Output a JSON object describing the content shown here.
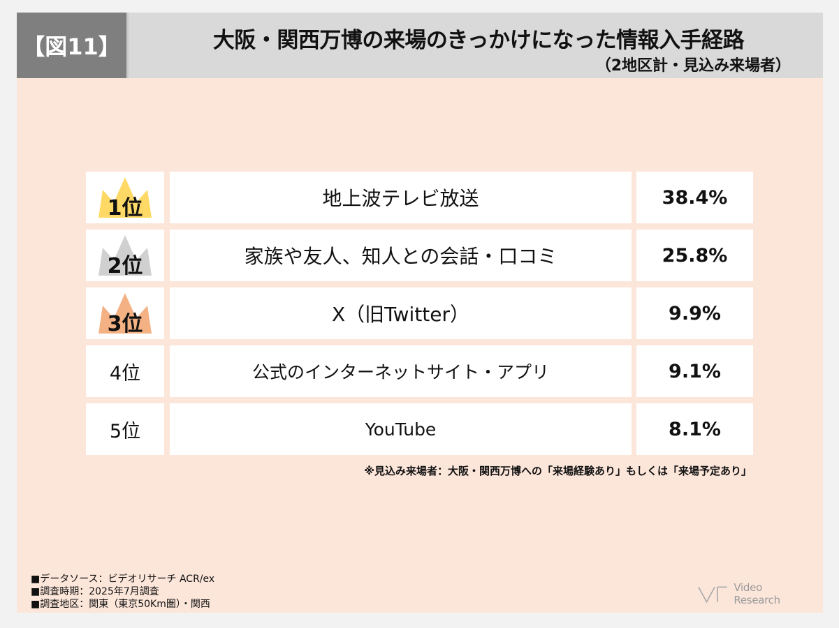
{
  "header": {
    "figure_label": "【図11】",
    "title": "大阪・関西万博の来場のきっかけになった情報入手経路",
    "subtitle": "（2地区計・見込み来場者）"
  },
  "chart_data": {
    "type": "table",
    "title": "大阪・関西万博の来場のきっかけになった情報入手経路",
    "subtitle": "（2地区計・見込み来場者）",
    "rows": [
      {
        "rank": "1位",
        "label": "地上波テレビ放送",
        "value": 38.4,
        "value_label": "38.4%",
        "crown": "gold"
      },
      {
        "rank": "2位",
        "label": "家族や友人、知人との会話・口コミ",
        "value": 25.8,
        "value_label": "25.8%",
        "crown": "silver"
      },
      {
        "rank": "3位",
        "label": "X（旧Twitter）",
        "value": 9.9,
        "value_label": "9.9%",
        "crown": "bronze"
      },
      {
        "rank": "4位",
        "label": "公式のインターネットサイト・アプリ",
        "value": 9.1,
        "value_label": "9.1%",
        "crown": ""
      },
      {
        "rank": "5位",
        "label": "YouTube",
        "value": 8.1,
        "value_label": "8.1%",
        "crown": ""
      }
    ]
  },
  "colors": {
    "background": "#fce6da",
    "header": "#d9d9d9",
    "figure_label_bg": "#7f7f7f",
    "gold": "#ffd966",
    "silver": "#d0d0d0",
    "bronze": "#f4b183"
  },
  "note": "※見込み来場者：大阪・関西万博への「来場経験あり」もしくは「来場予定あり」",
  "source_lines": [
    "■データソース：ビデオリサーチ ACR/ex",
    "■調査時期：2025年7月調査",
    "■調査地区：関東（東京50Km圏）・関西"
  ],
  "logo": {
    "text": "Video Research",
    "icon": "video-research-logo-icon"
  }
}
